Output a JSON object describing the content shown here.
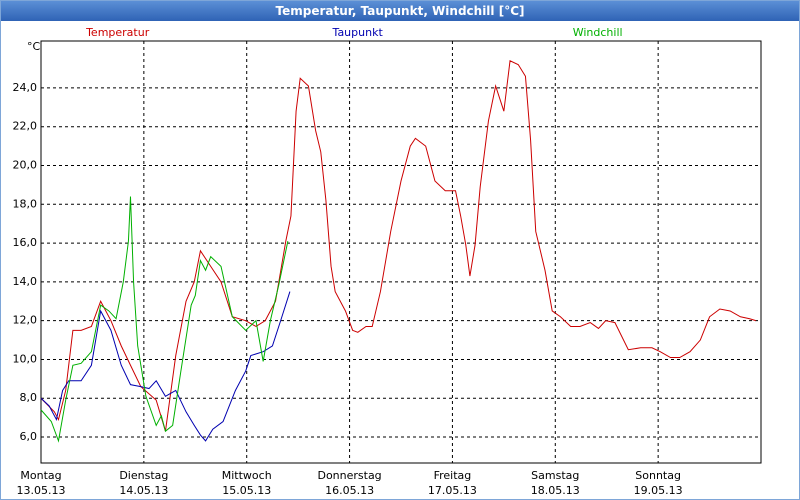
{
  "window_title": "Temperatur, Taupunkt, Windchill [°C]",
  "chart_data": {
    "type": "line",
    "y_unit": "°C",
    "xlim": [
      0,
      7
    ],
    "xticks": [
      {
        "value": 0,
        "label": "Montag"
      },
      {
        "value": 1,
        "label": "Dienstag"
      },
      {
        "value": 2,
        "label": "Mittwoch"
      },
      {
        "value": 3,
        "label": "Donnerstag"
      },
      {
        "value": 4,
        "label": "Freitag"
      },
      {
        "value": 5,
        "label": "Samstag"
      },
      {
        "value": 6,
        "label": "Sonntag"
      }
    ],
    "xtick_dates": [
      "13.05.13",
      "14.05.13",
      "15.05.13",
      "16.05.13",
      "17.05.13",
      "18.05.13",
      "19.05.13"
    ],
    "ylim": [
      4.66,
      26.42
    ],
    "yticks": [
      {
        "value": 6,
        "label": "6,0"
      },
      {
        "value": 8,
        "label": "8,0"
      },
      {
        "value": 10,
        "label": "10,0"
      },
      {
        "value": 12,
        "label": "12,0"
      },
      {
        "value": 14,
        "label": "14,0"
      },
      {
        "value": 16,
        "label": "16,0"
      },
      {
        "value": 18,
        "label": "18,0"
      },
      {
        "value": 20,
        "label": "20,0"
      },
      {
        "value": 22,
        "label": "22,0"
      },
      {
        "value": 24,
        "label": "24,0"
      }
    ],
    "grid": true,
    "series": [
      {
        "name": "Temperatur",
        "color": "#cc0000",
        "x": [
          0.0,
          0.13,
          0.17,
          0.24,
          0.31,
          0.39,
          0.49,
          0.58,
          0.68,
          0.78,
          0.87,
          0.97,
          1.12,
          1.21,
          1.31,
          1.41,
          1.49,
          1.55,
          1.65,
          1.75,
          1.86,
          1.99,
          2.09,
          2.18,
          2.28,
          2.38,
          2.43,
          2.48,
          2.52,
          2.6,
          2.67,
          2.72,
          2.77,
          2.82,
          2.86,
          2.96,
          3.03,
          3.08,
          3.16,
          3.22,
          3.3,
          3.4,
          3.5,
          3.59,
          3.64,
          3.74,
          3.83,
          3.93,
          4.03,
          4.08,
          4.13,
          4.17,
          4.22,
          4.27,
          4.35,
          4.42,
          4.5,
          4.56,
          4.64,
          4.71,
          4.76,
          4.81,
          4.9,
          4.97,
          5.05,
          5.15,
          5.24,
          5.34,
          5.42,
          5.49,
          5.58,
          5.71,
          5.83,
          5.94,
          6.02,
          6.12,
          6.21,
          6.31,
          6.41,
          6.5,
          6.6,
          6.7,
          6.8,
          6.89,
          6.95
        ],
        "values": [
          8.0,
          7.3,
          6.9,
          8.4,
          11.5,
          11.5,
          11.7,
          13.0,
          12.0,
          10.7,
          9.7,
          8.6,
          7.9,
          6.3,
          10.2,
          13.0,
          14.0,
          15.6,
          14.8,
          14.0,
          12.2,
          12.0,
          11.7,
          12.0,
          13.0,
          16.1,
          17.4,
          22.8,
          24.5,
          24.1,
          21.8,
          20.7,
          18.2,
          14.8,
          13.5,
          12.5,
          11.5,
          11.4,
          11.7,
          11.7,
          13.5,
          16.6,
          19.2,
          21.0,
          21.4,
          21.0,
          19.2,
          18.7,
          18.7,
          17.4,
          15.9,
          14.3,
          15.9,
          18.9,
          22.3,
          24.1,
          22.8,
          25.4,
          25.2,
          24.6,
          21.3,
          16.6,
          14.6,
          12.5,
          12.2,
          11.7,
          11.7,
          11.9,
          11.6,
          12.0,
          11.9,
          10.5,
          10.6,
          10.6,
          10.4,
          10.1,
          10.1,
          10.4,
          11.0,
          12.2,
          12.6,
          12.5,
          12.2,
          12.1,
          12.0
        ]
      },
      {
        "name": "Taupunkt",
        "color": "#0000b0",
        "x": [
          0.0,
          0.08,
          0.15,
          0.21,
          0.27,
          0.39,
          0.49,
          0.58,
          0.68,
          0.78,
          0.87,
          0.97,
          1.05,
          1.12,
          1.21,
          1.31,
          1.41,
          1.49,
          1.55,
          1.6,
          1.67,
          1.77,
          1.89,
          1.99,
          2.04,
          2.16,
          2.25,
          2.33,
          2.42
        ],
        "values": [
          8.0,
          7.6,
          6.9,
          8.4,
          8.9,
          8.9,
          9.7,
          12.5,
          11.5,
          9.7,
          8.7,
          8.6,
          8.5,
          8.9,
          8.1,
          8.4,
          7.3,
          6.6,
          6.1,
          5.8,
          6.4,
          6.8,
          8.4,
          9.4,
          10.2,
          10.4,
          10.7,
          12.0,
          13.5
        ]
      },
      {
        "name": "Windchill",
        "color": "#00b000",
        "x": [
          0.0,
          0.1,
          0.17,
          0.24,
          0.31,
          0.39,
          0.49,
          0.58,
          0.66,
          0.73,
          0.8,
          0.85,
          0.87,
          0.9,
          0.94,
          1.02,
          1.12,
          1.17,
          1.21,
          1.28,
          1.36,
          1.46,
          1.5,
          1.55,
          1.6,
          1.65,
          1.75,
          1.86,
          1.99,
          2.09,
          2.16,
          2.23,
          2.31,
          2.4
        ],
        "values": [
          7.4,
          6.8,
          5.8,
          7.9,
          9.7,
          9.8,
          10.4,
          12.8,
          12.5,
          12.1,
          14.0,
          16.1,
          18.4,
          14.0,
          10.7,
          8.1,
          6.6,
          7.1,
          6.3,
          6.6,
          9.4,
          12.8,
          13.3,
          15.1,
          14.6,
          15.3,
          14.8,
          12.2,
          11.5,
          12.0,
          9.9,
          12.0,
          13.8,
          16.1
        ]
      }
    ]
  }
}
